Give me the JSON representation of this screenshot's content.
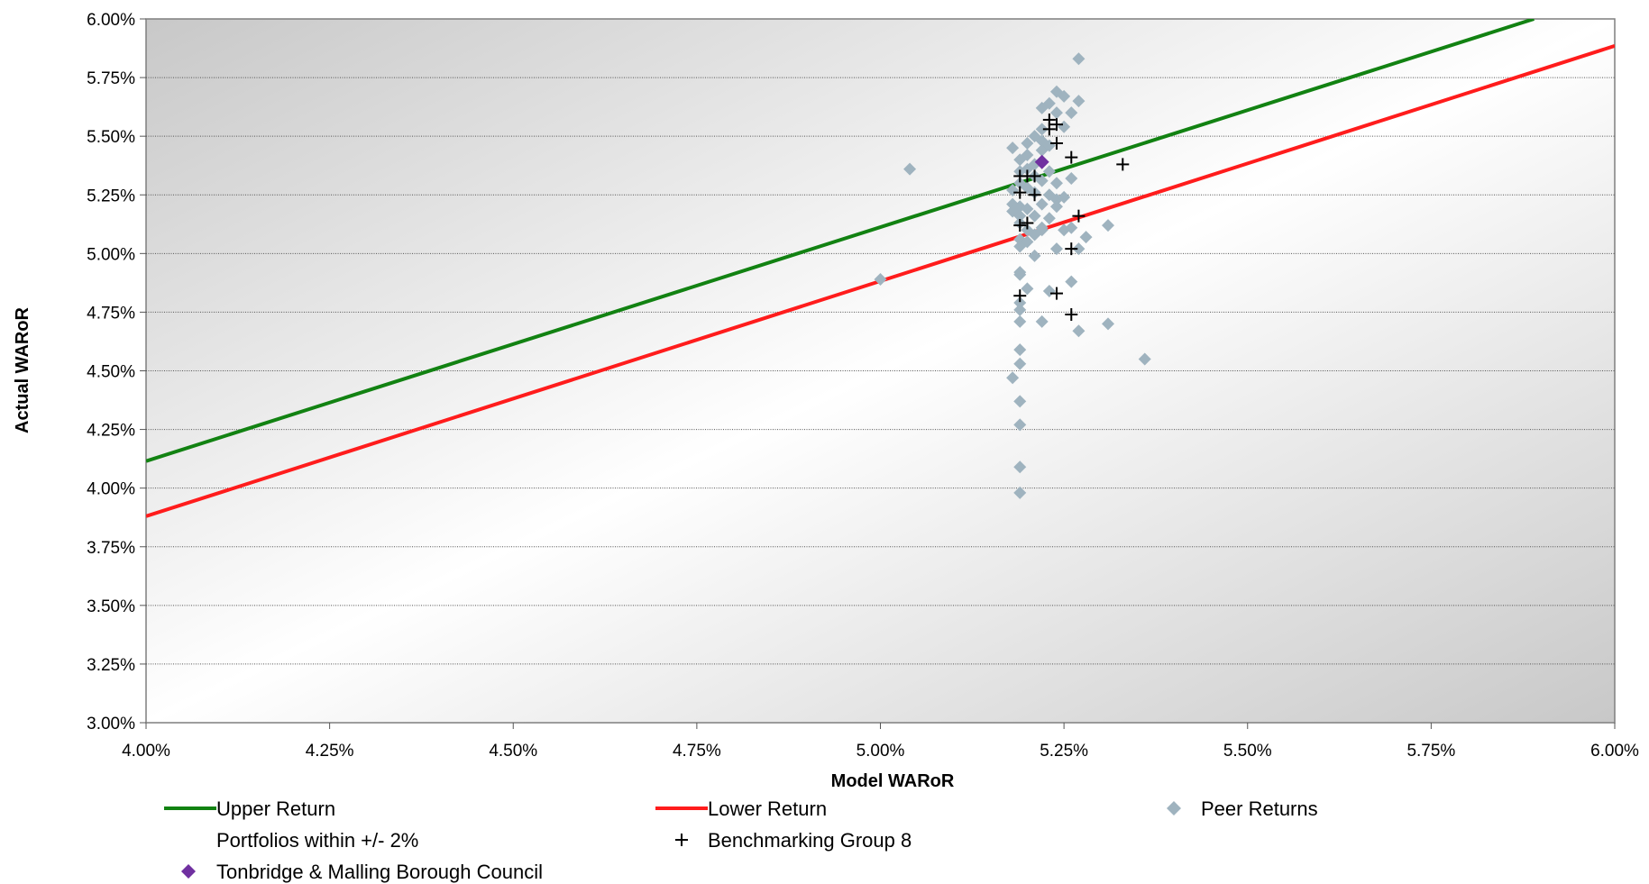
{
  "chart_data": {
    "type": "scatter",
    "xlabel": "Model WARoR",
    "ylabel": "Actual WARoR",
    "xlim": [
      4.0,
      6.0
    ],
    "ylim": [
      3.0,
      6.0
    ],
    "x_ticks": [
      "4.00%",
      "4.25%",
      "4.50%",
      "4.75%",
      "5.00%",
      "5.25%",
      "5.50%",
      "5.75%",
      "6.00%"
    ],
    "x_tick_values": [
      4.0,
      4.25,
      4.5,
      4.75,
      5.0,
      5.25,
      5.5,
      5.75,
      6.0
    ],
    "y_ticks": [
      "3.00%",
      "3.25%",
      "3.50%",
      "3.75%",
      "4.00%",
      "4.25%",
      "4.50%",
      "4.75%",
      "5.00%",
      "5.25%",
      "5.50%",
      "5.75%",
      "6.00%"
    ],
    "y_tick_values": [
      3.0,
      3.25,
      3.5,
      3.75,
      4.0,
      4.25,
      4.5,
      4.75,
      5.0,
      5.25,
      5.5,
      5.75,
      6.0
    ],
    "grid": "horizontal",
    "legend_position": "bottom",
    "series": [
      {
        "name": "Upper Return",
        "kind": "line",
        "color": "#128212",
        "points": [
          [
            4.0,
            4.115
          ],
          [
            5.89,
            6.0
          ]
        ]
      },
      {
        "name": "Lower Return",
        "kind": "line",
        "color": "#ff1c1c",
        "points": [
          [
            4.0,
            3.88
          ],
          [
            6.0,
            5.885
          ]
        ]
      },
      {
        "name": "Peer Returns",
        "kind": "scatter",
        "marker": "diamond",
        "color": "#9fb3bf",
        "points": [
          [
            5.04,
            5.36
          ],
          [
            5.0,
            4.89
          ],
          [
            5.27,
            5.83
          ],
          [
            5.24,
            5.69
          ],
          [
            5.25,
            5.67
          ],
          [
            5.23,
            5.64
          ],
          [
            5.22,
            5.62
          ],
          [
            5.24,
            5.6
          ],
          [
            5.26,
            5.6
          ],
          [
            5.27,
            5.65
          ],
          [
            5.25,
            5.54
          ],
          [
            5.22,
            5.53
          ],
          [
            5.21,
            5.5
          ],
          [
            5.22,
            5.48
          ],
          [
            5.2,
            5.47
          ],
          [
            5.18,
            5.45
          ],
          [
            5.2,
            5.42
          ],
          [
            5.22,
            5.44
          ],
          [
            5.23,
            5.46
          ],
          [
            5.19,
            5.4
          ],
          [
            5.21,
            5.38
          ],
          [
            5.2,
            5.36
          ],
          [
            5.19,
            5.35
          ],
          [
            5.21,
            5.33
          ],
          [
            5.22,
            5.31
          ],
          [
            5.23,
            5.35
          ],
          [
            5.24,
            5.3
          ],
          [
            5.26,
            5.32
          ],
          [
            5.19,
            5.3
          ],
          [
            5.2,
            5.28
          ],
          [
            5.18,
            5.27
          ],
          [
            5.21,
            5.26
          ],
          [
            5.23,
            5.25
          ],
          [
            5.24,
            5.23
          ],
          [
            5.25,
            5.24
          ],
          [
            5.18,
            5.21
          ],
          [
            5.19,
            5.2
          ],
          [
            5.2,
            5.19
          ],
          [
            5.22,
            5.21
          ],
          [
            5.24,
            5.2
          ],
          [
            5.18,
            5.18
          ],
          [
            5.19,
            5.16
          ],
          [
            5.21,
            5.16
          ],
          [
            5.23,
            5.15
          ],
          [
            5.19,
            5.13
          ],
          [
            5.2,
            5.1
          ],
          [
            5.22,
            5.11
          ],
          [
            5.21,
            5.08
          ],
          [
            5.19,
            5.06
          ],
          [
            5.2,
            5.05
          ],
          [
            5.22,
            5.1
          ],
          [
            5.25,
            5.1
          ],
          [
            5.26,
            5.11
          ],
          [
            5.31,
            5.12
          ],
          [
            5.28,
            5.07
          ],
          [
            5.24,
            5.02
          ],
          [
            5.27,
            5.02
          ],
          [
            5.19,
            5.03
          ],
          [
            5.21,
            4.99
          ],
          [
            5.19,
            4.92
          ],
          [
            5.19,
            4.91
          ],
          [
            5.2,
            4.85
          ],
          [
            5.23,
            4.84
          ],
          [
            5.26,
            4.88
          ],
          [
            5.19,
            4.79
          ],
          [
            5.19,
            4.76
          ],
          [
            5.19,
            4.71
          ],
          [
            5.22,
            4.71
          ],
          [
            5.27,
            4.67
          ],
          [
            5.31,
            4.7
          ],
          [
            5.36,
            4.55
          ],
          [
            5.19,
            4.59
          ],
          [
            5.19,
            4.53
          ],
          [
            5.18,
            4.47
          ],
          [
            5.19,
            4.37
          ],
          [
            5.19,
            4.27
          ],
          [
            5.19,
            4.09
          ],
          [
            5.19,
            3.98
          ]
        ]
      },
      {
        "name": "Portfolios within +/- 2%",
        "kind": "none",
        "points": []
      },
      {
        "name": "Benchmarking Group 8",
        "kind": "scatter",
        "marker": "plus",
        "color": "#000000",
        "points": [
          [
            5.23,
            5.57
          ],
          [
            5.24,
            5.55
          ],
          [
            5.23,
            5.53
          ],
          [
            5.24,
            5.47
          ],
          [
            5.26,
            5.41
          ],
          [
            5.33,
            5.38
          ],
          [
            5.19,
            5.33
          ],
          [
            5.2,
            5.33
          ],
          [
            5.21,
            5.33
          ],
          [
            5.19,
            5.26
          ],
          [
            5.21,
            5.25
          ],
          [
            5.27,
            5.16
          ],
          [
            5.19,
            5.12
          ],
          [
            5.2,
            5.13
          ],
          [
            5.26,
            5.02
          ],
          [
            5.19,
            4.82
          ],
          [
            5.24,
            4.83
          ],
          [
            5.26,
            4.74
          ]
        ]
      },
      {
        "name": "Tonbridge & Malling Borough Council",
        "kind": "scatter",
        "marker": "diamond",
        "color": "#7030a0",
        "points": [
          [
            5.22,
            5.39
          ]
        ]
      }
    ]
  }
}
